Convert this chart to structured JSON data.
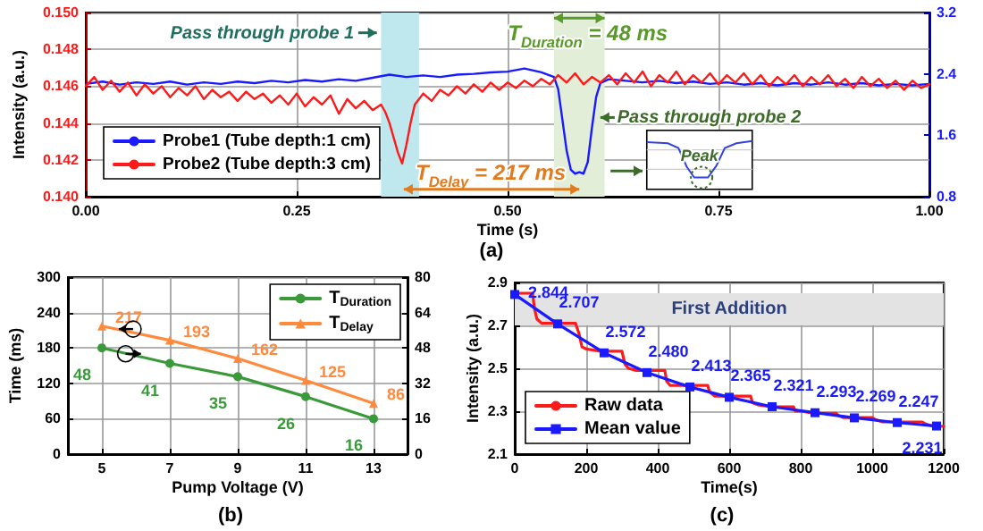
{
  "chart_data": [
    {
      "type": "line",
      "title": "(a)",
      "xlabel": "Time (s)",
      "ylabel": "Intensity (a.u.)",
      "xlim": [
        0,
        1
      ],
      "xticks": [
        {
          "value": 0,
          "label": "0.00"
        },
        {
          "value": 0.25,
          "label": "0.25"
        },
        {
          "value": 0.5,
          "label": "0.50"
        },
        {
          "value": 0.75,
          "label": "0.75"
        },
        {
          "value": 1,
          "label": "1.00"
        }
      ],
      "ylim": [
        0.14,
        0.15
      ],
      "yticks": [
        {
          "value": 0.14,
          "label": "0.140"
        },
        {
          "value": 0.142,
          "label": "0.142"
        },
        {
          "value": 0.144,
          "label": "0.144"
        },
        {
          "value": 0.146,
          "label": "0.146"
        },
        {
          "value": 0.148,
          "label": "0.148"
        },
        {
          "value": 0.15,
          "label": "0.150"
        }
      ],
      "y2lim": [
        0.8,
        3.2
      ],
      "y2ticks": [
        0.8,
        1.6,
        2.4,
        3.2
      ],
      "grid": true,
      "legend": "bottom left",
      "marker": "none",
      "line_style": "solid",
      "series": [
        {
          "name": "Probe1 (Tube depth:1 cm)",
          "color": "#1a1aff",
          "axis": "y2",
          "x": [
            0,
            0.02,
            0.04,
            0.06,
            0.08,
            0.1,
            0.12,
            0.14,
            0.16,
            0.18,
            0.2,
            0.22,
            0.24,
            0.26,
            0.28,
            0.3,
            0.32,
            0.34,
            0.36,
            0.38,
            0.4,
            0.42,
            0.44,
            0.46,
            0.48,
            0.5,
            0.52,
            0.54,
            0.55,
            0.555,
            0.56,
            0.565,
            0.57,
            0.575,
            0.58,
            0.585,
            0.59,
            0.595,
            0.6,
            0.605,
            0.61,
            0.62,
            0.64,
            0.66,
            0.68,
            0.7,
            0.72,
            0.74,
            0.76,
            0.78,
            0.8,
            0.82,
            0.84,
            0.86,
            0.88,
            0.9,
            0.92,
            0.94,
            0.96,
            0.98,
            1
          ],
          "values": [
            2.27,
            2.3,
            2.26,
            2.29,
            2.27,
            2.3,
            2.26,
            2.29,
            2.27,
            2.3,
            2.28,
            2.31,
            2.29,
            2.32,
            2.3,
            2.33,
            2.31,
            2.35,
            2.39,
            2.36,
            2.38,
            2.36,
            2.39,
            2.4,
            2.42,
            2.43,
            2.47,
            2.42,
            2.38,
            2.36,
            2.2,
            1.8,
            1.4,
            1.15,
            1.1,
            1.12,
            1.1,
            1.25,
            1.7,
            2.1,
            2.28,
            2.33,
            2.31,
            2.29,
            2.31,
            2.28,
            2.3,
            2.27,
            2.29,
            2.26,
            2.28,
            2.25,
            2.28,
            2.26,
            2.29,
            2.26,
            2.28,
            2.25,
            2.27,
            2.25,
            2.27
          ]
        },
        {
          "name": "Probe2 (Tube depth:3 cm)",
          "color": "#ff1a1a",
          "x": [
            0,
            0.01,
            0.02,
            0.03,
            0.04,
            0.05,
            0.06,
            0.07,
            0.08,
            0.09,
            0.1,
            0.11,
            0.12,
            0.13,
            0.14,
            0.15,
            0.16,
            0.17,
            0.18,
            0.19,
            0.2,
            0.21,
            0.22,
            0.23,
            0.24,
            0.25,
            0.26,
            0.27,
            0.28,
            0.29,
            0.3,
            0.31,
            0.32,
            0.33,
            0.34,
            0.35,
            0.355,
            0.36,
            0.365,
            0.37,
            0.375,
            0.38,
            0.385,
            0.39,
            0.4,
            0.41,
            0.42,
            0.43,
            0.44,
            0.45,
            0.46,
            0.47,
            0.48,
            0.49,
            0.5,
            0.51,
            0.52,
            0.53,
            0.54,
            0.55,
            0.56,
            0.57,
            0.58,
            0.59,
            0.6,
            0.61,
            0.62,
            0.63,
            0.64,
            0.65,
            0.66,
            0.67,
            0.68,
            0.69,
            0.7,
            0.71,
            0.72,
            0.73,
            0.74,
            0.75,
            0.76,
            0.77,
            0.78,
            0.79,
            0.8,
            0.81,
            0.82,
            0.83,
            0.84,
            0.85,
            0.86,
            0.87,
            0.88,
            0.89,
            0.9,
            0.91,
            0.92,
            0.93,
            0.94,
            0.95,
            0.96,
            0.97,
            0.98,
            0.99,
            1
          ],
          "values": [
            0.146,
            0.1465,
            0.1458,
            0.1463,
            0.1457,
            0.1462,
            0.1455,
            0.1461,
            0.1456,
            0.146,
            0.1454,
            0.1459,
            0.1455,
            0.146,
            0.1453,
            0.1458,
            0.1454,
            0.1457,
            0.1452,
            0.1457,
            0.1453,
            0.1456,
            0.1451,
            0.1455,
            0.145,
            0.1456,
            0.1449,
            0.1454,
            0.145,
            0.1455,
            0.1445,
            0.1453,
            0.1448,
            0.1452,
            0.1447,
            0.145,
            0.1446,
            0.144,
            0.1432,
            0.1424,
            0.1418,
            0.1428,
            0.144,
            0.145,
            0.1456,
            0.1452,
            0.1458,
            0.1455,
            0.146,
            0.1456,
            0.1461,
            0.1457,
            0.1462,
            0.1458,
            0.1462,
            0.1459,
            0.1463,
            0.146,
            0.1464,
            0.1461,
            0.1466,
            0.1462,
            0.1467,
            0.1461,
            0.1465,
            0.1462,
            0.1466,
            0.1461,
            0.1467,
            0.1462,
            0.1468,
            0.146,
            0.1466,
            0.1462,
            0.1468,
            0.1461,
            0.1466,
            0.1462,
            0.1467,
            0.1461,
            0.1466,
            0.1462,
            0.1467,
            0.1461,
            0.1466,
            0.146,
            0.1465,
            0.1461,
            0.1466,
            0.146,
            0.1465,
            0.1461,
            0.1466,
            0.146,
            0.1464,
            0.1459,
            0.1465,
            0.146,
            0.1464,
            0.1459,
            0.1463,
            0.1458,
            0.1463,
            0.1459,
            0.1461
          ]
        }
      ],
      "bands": [
        {
          "axis": "x",
          "from": 0.35,
          "to": 0.395,
          "color": "#bfe8ee"
        },
        {
          "axis": "x",
          "from": 0.555,
          "to": 0.615,
          "color": "#e2eed8"
        }
      ],
      "annotations": [
        "Pass through probe 1",
        "T$_{Duration}$ = 48 ms",
        "Pass through probe 2",
        "T$_{Delay}$ = 217 ms",
        "Peak"
      ]
    },
    {
      "type": "line",
      "title": "(b)",
      "xlabel": "Pump Voltage (V)",
      "ylabel": "Time (ms)",
      "xlim": [
        4,
        14
      ],
      "xticks": [
        5,
        7,
        9,
        11,
        13
      ],
      "ylim": [
        0,
        300
      ],
      "yticks": [
        0,
        60,
        120,
        180,
        240,
        300
      ],
      "y2lim": [
        0,
        80
      ],
      "y2ticks": [
        0,
        16,
        32,
        48,
        64,
        80
      ],
      "grid": true,
      "legend": "top right",
      "data_labels": true,
      "line_style": "solid",
      "x": [
        5,
        7,
        9,
        11,
        13
      ],
      "series": [
        {
          "name": "T$_{Duration}$",
          "color": "#3a9a3a",
          "axis": "y2",
          "marker": "circle",
          "values": [
            48,
            41,
            35,
            26,
            16
          ]
        },
        {
          "name": "T$_{Delay}$",
          "color": "#ff8a3d",
          "marker": "triangle",
          "values": [
            217,
            193,
            162,
            125,
            86
          ]
        }
      ]
    },
    {
      "type": "line",
      "title": "(c)",
      "xlabel": "Time(s)",
      "ylabel": "Intensity (a.u.)",
      "xlim": [
        0,
        1200
      ],
      "xticks": [
        0,
        200,
        400,
        600,
        800,
        1000,
        1200
      ],
      "ylim": [
        2.1,
        2.9
      ],
      "yticks": [
        2.1,
        2.3,
        2.5,
        2.7,
        2.9
      ],
      "grid": true,
      "legend": "bottom left",
      "line_style": "solid",
      "series": [
        {
          "name": "Raw data",
          "color": "#ff1a1a",
          "marker": "none",
          "x": [
            0,
            50,
            55,
            62,
            75,
            110,
            170,
            180,
            188,
            200,
            240,
            300,
            308,
            318,
            340,
            420,
            425,
            435,
            480,
            540,
            545,
            560,
            600,
            660,
            665,
            680,
            720,
            780,
            785,
            800,
            840,
            900,
            905,
            920,
            960,
            1000,
            1010,
            1030,
            1080,
            1140,
            1150,
            1170,
            1200
          ],
          "values": [
            2.85,
            2.85,
            2.78,
            2.73,
            2.71,
            2.71,
            2.71,
            2.66,
            2.6,
            2.59,
            2.58,
            2.58,
            2.52,
            2.5,
            2.49,
            2.49,
            2.44,
            2.42,
            2.42,
            2.42,
            2.39,
            2.37,
            2.37,
            2.37,
            2.34,
            2.33,
            2.32,
            2.32,
            2.3,
            2.3,
            2.29,
            2.29,
            2.28,
            2.27,
            2.27,
            2.27,
            2.26,
            2.25,
            2.25,
            2.25,
            2.24,
            2.23,
            2.23
          ]
        },
        {
          "name": "Mean value",
          "color": "#1a1aff",
          "marker": "square",
          "x": [
            0,
            120,
            250,
            370,
            490,
            600,
            720,
            840,
            950,
            1070,
            1180
          ],
          "values": [
            2.844,
            2.707,
            2.572,
            2.48,
            2.413,
            2.365,
            2.321,
            2.293,
            2.269,
            2.247,
            2.231
          ],
          "value_labels": [
            "2.844",
            "2.707",
            "2.572",
            "2.480",
            "2.413",
            "2.365",
            "2.321",
            "2.293",
            "2.269",
            "2.247",
            "2.231"
          ]
        }
      ],
      "bands": [
        {
          "axis": "y",
          "from": 2.7,
          "to": 2.85,
          "color": "#e3e3e3",
          "label": "First Addition"
        }
      ]
    }
  ]
}
